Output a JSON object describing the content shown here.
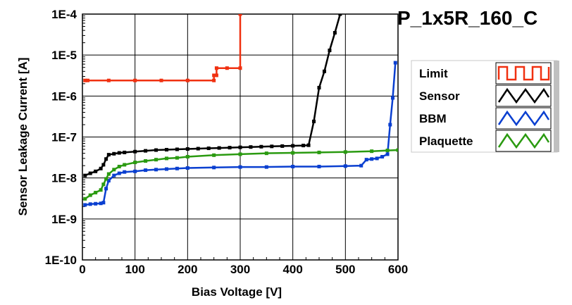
{
  "chart_data": {
    "type": "line",
    "title": "P_1x5R_160_C",
    "xlabel": "Bias Voltage [V]",
    "ylabel": "Sensor Leakage Current [A]",
    "xlim": [
      0,
      600
    ],
    "ylim": [
      1e-10,
      0.0001
    ],
    "yscale": "log",
    "grid": true,
    "legend_position": "right",
    "x_ticks": [
      "0",
      "100",
      "200",
      "300",
      "400",
      "500",
      "600"
    ],
    "x_tick_values": [
      0,
      100,
      200,
      300,
      400,
      500,
      600
    ],
    "y_ticks": [
      "1E-10",
      "1E-9",
      "1E-8",
      "1E-7",
      "1E-6",
      "1E-5",
      "1E-4"
    ],
    "y_tick_values": [
      1e-10,
      1e-09,
      1e-08,
      1e-07,
      1e-06,
      1e-05,
      0.0001
    ],
    "series": [
      {
        "name": "Limit",
        "color": "#f03010",
        "marker": false,
        "points": [
          [
            5,
            2.4e-06
          ],
          [
            10,
            2.4e-06
          ],
          [
            50,
            2.4e-06
          ],
          [
            100,
            2.4e-06
          ],
          [
            150,
            2.4e-06
          ],
          [
            200,
            2.4e-06
          ],
          [
            250,
            2.4e-06
          ],
          [
            250,
            3.2e-06
          ],
          [
            255,
            3.2e-06
          ],
          [
            255,
            4.8e-06
          ],
          [
            275,
            4.8e-06
          ],
          [
            300,
            4.8e-06
          ],
          [
            300,
            0.0001
          ]
        ]
      },
      {
        "name": "Sensor",
        "color": "#000000",
        "marker": true,
        "points": [
          [
            5,
            1.15e-08
          ],
          [
            15,
            1.3e-08
          ],
          [
            25,
            1.45e-08
          ],
          [
            35,
            1.7e-08
          ],
          [
            40,
            2.1e-08
          ],
          [
            45,
            2.9e-08
          ],
          [
            50,
            3.7e-08
          ],
          [
            60,
            3.9e-08
          ],
          [
            70,
            4.1e-08
          ],
          [
            80,
            4.2e-08
          ],
          [
            100,
            4.4e-08
          ],
          [
            120,
            4.6e-08
          ],
          [
            140,
            4.8e-08
          ],
          [
            160,
            4.9e-08
          ],
          [
            180,
            5e-08
          ],
          [
            200,
            5.1e-08
          ],
          [
            220,
            5.2e-08
          ],
          [
            240,
            5.3e-08
          ],
          [
            260,
            5.4e-08
          ],
          [
            280,
            5.5e-08
          ],
          [
            300,
            5.6e-08
          ],
          [
            320,
            5.7e-08
          ],
          [
            340,
            5.8e-08
          ],
          [
            360,
            5.9e-08
          ],
          [
            380,
            6e-08
          ],
          [
            400,
            6.1e-08
          ],
          [
            420,
            6.2e-08
          ],
          [
            430,
            6.3e-08
          ],
          [
            440,
            2.4e-07
          ],
          [
            450,
            1.6e-06
          ],
          [
            460,
            4e-06
          ],
          [
            470,
            1.3e-05
          ],
          [
            480,
            3.5e-05
          ],
          [
            490,
            0.0001
          ]
        ]
      },
      {
        "name": "BBM",
        "color": "#0a3fd0",
        "marker": true,
        "points": [
          [
            5,
            2.2e-09
          ],
          [
            15,
            2.3e-09
          ],
          [
            25,
            2.35e-09
          ],
          [
            35,
            2.4e-09
          ],
          [
            40,
            2.5e-09
          ],
          [
            45,
            5.5e-09
          ],
          [
            50,
            8.6e-09
          ],
          [
            60,
            1.15e-08
          ],
          [
            70,
            1.3e-08
          ],
          [
            80,
            1.4e-08
          ],
          [
            100,
            1.45e-08
          ],
          [
            120,
            1.55e-08
          ],
          [
            140,
            1.6e-08
          ],
          [
            160,
            1.65e-08
          ],
          [
            180,
            1.7e-08
          ],
          [
            200,
            1.75e-08
          ],
          [
            250,
            1.8e-08
          ],
          [
            300,
            1.85e-08
          ],
          [
            350,
            1.85e-08
          ],
          [
            400,
            1.9e-08
          ],
          [
            450,
            1.9e-08
          ],
          [
            500,
            1.95e-08
          ],
          [
            530,
            2e-08
          ],
          [
            540,
            2.8e-08
          ],
          [
            550,
            2.9e-08
          ],
          [
            560,
            3e-08
          ],
          [
            570,
            3.3e-08
          ],
          [
            580,
            3.8e-08
          ],
          [
            585,
            2e-07
          ],
          [
            590,
            9e-07
          ],
          [
            595,
            6.5e-06
          ]
        ]
      },
      {
        "name": "Plaquette",
        "color": "#2a9a10",
        "marker": true,
        "points": [
          [
            5,
            3.1e-09
          ],
          [
            15,
            3.8e-09
          ],
          [
            25,
            4.4e-09
          ],
          [
            35,
            5.1e-09
          ],
          [
            40,
            7e-09
          ],
          [
            45,
            9.5e-09
          ],
          [
            50,
            1.25e-08
          ],
          [
            60,
            1.6e-08
          ],
          [
            70,
            1.9e-08
          ],
          [
            80,
            2.1e-08
          ],
          [
            100,
            2.4e-08
          ],
          [
            120,
            2.6e-08
          ],
          [
            140,
            2.8e-08
          ],
          [
            160,
            3e-08
          ],
          [
            180,
            3.1e-08
          ],
          [
            200,
            3.3e-08
          ],
          [
            250,
            3.6e-08
          ],
          [
            300,
            3.8e-08
          ],
          [
            350,
            4e-08
          ],
          [
            400,
            4.1e-08
          ],
          [
            450,
            4.2e-08
          ],
          [
            500,
            4.3e-08
          ],
          [
            550,
            4.5e-08
          ],
          [
            580,
            4.7e-08
          ],
          [
            600,
            4.8e-08
          ]
        ]
      }
    ]
  }
}
